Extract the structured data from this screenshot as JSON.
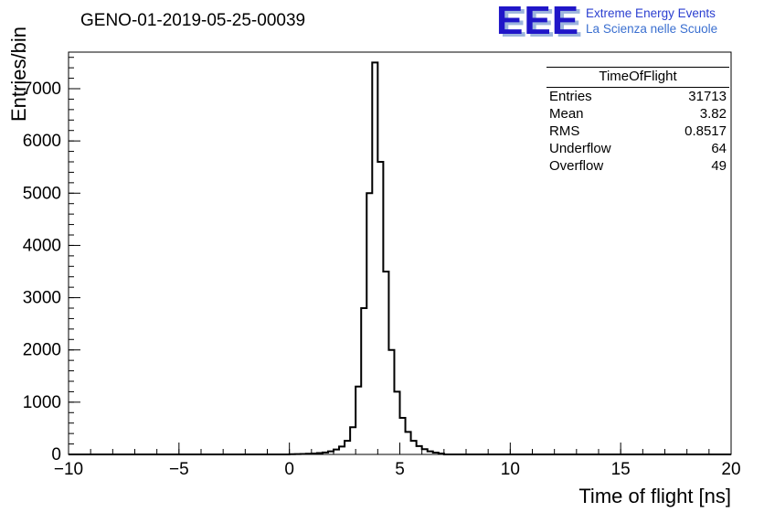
{
  "header": {
    "title": "GENO-01-2019-05-25-00039",
    "logo": {
      "text": "EEE",
      "line1": "Extreme Energy Events",
      "line2": "La Scienza nelle Scuole",
      "color": "#2016c8",
      "shadow_color": "#9db5dd",
      "line1_color": "#2b3fd0",
      "line2_color": "#3a6fd0"
    }
  },
  "stats": {
    "title": "TimeOfFlight",
    "rows": [
      [
        "Entries",
        "31713"
      ],
      [
        "Mean",
        "3.82"
      ],
      [
        "RMS",
        "0.8517"
      ],
      [
        "Underflow",
        "64"
      ],
      [
        "Overflow",
        "49"
      ]
    ]
  },
  "chart_data": {
    "type": "histogram-step",
    "title": "GENO-01-2019-05-25-00039",
    "xlabel": "Time of flight [ns]",
    "ylabel": "Entries/bin",
    "xlim": [
      -10,
      20
    ],
    "ylim": [
      0,
      7700
    ],
    "x_major_ticks": [
      -10,
      -5,
      0,
      5,
      10,
      15,
      20
    ],
    "x_tick_labels": [
      "−10",
      "−5",
      "0",
      "5",
      "10",
      "15",
      "20"
    ],
    "y_major_ticks": [
      0,
      1000,
      2000,
      3000,
      4000,
      5000,
      6000,
      7000
    ],
    "x_minor_step": 1,
    "y_minor_step": 200,
    "line_color": "#000000",
    "bin_start": 0.0,
    "bin_width": 0.25,
    "counts": [
      4,
      6,
      9,
      13,
      18,
      26,
      38,
      60,
      95,
      150,
      260,
      520,
      1300,
      2800,
      5000,
      7500,
      5600,
      3500,
      2000,
      1200,
      700,
      430,
      260,
      160,
      100,
      60,
      35,
      18
    ],
    "grid": false,
    "legend": "stats-box-top-right"
  }
}
